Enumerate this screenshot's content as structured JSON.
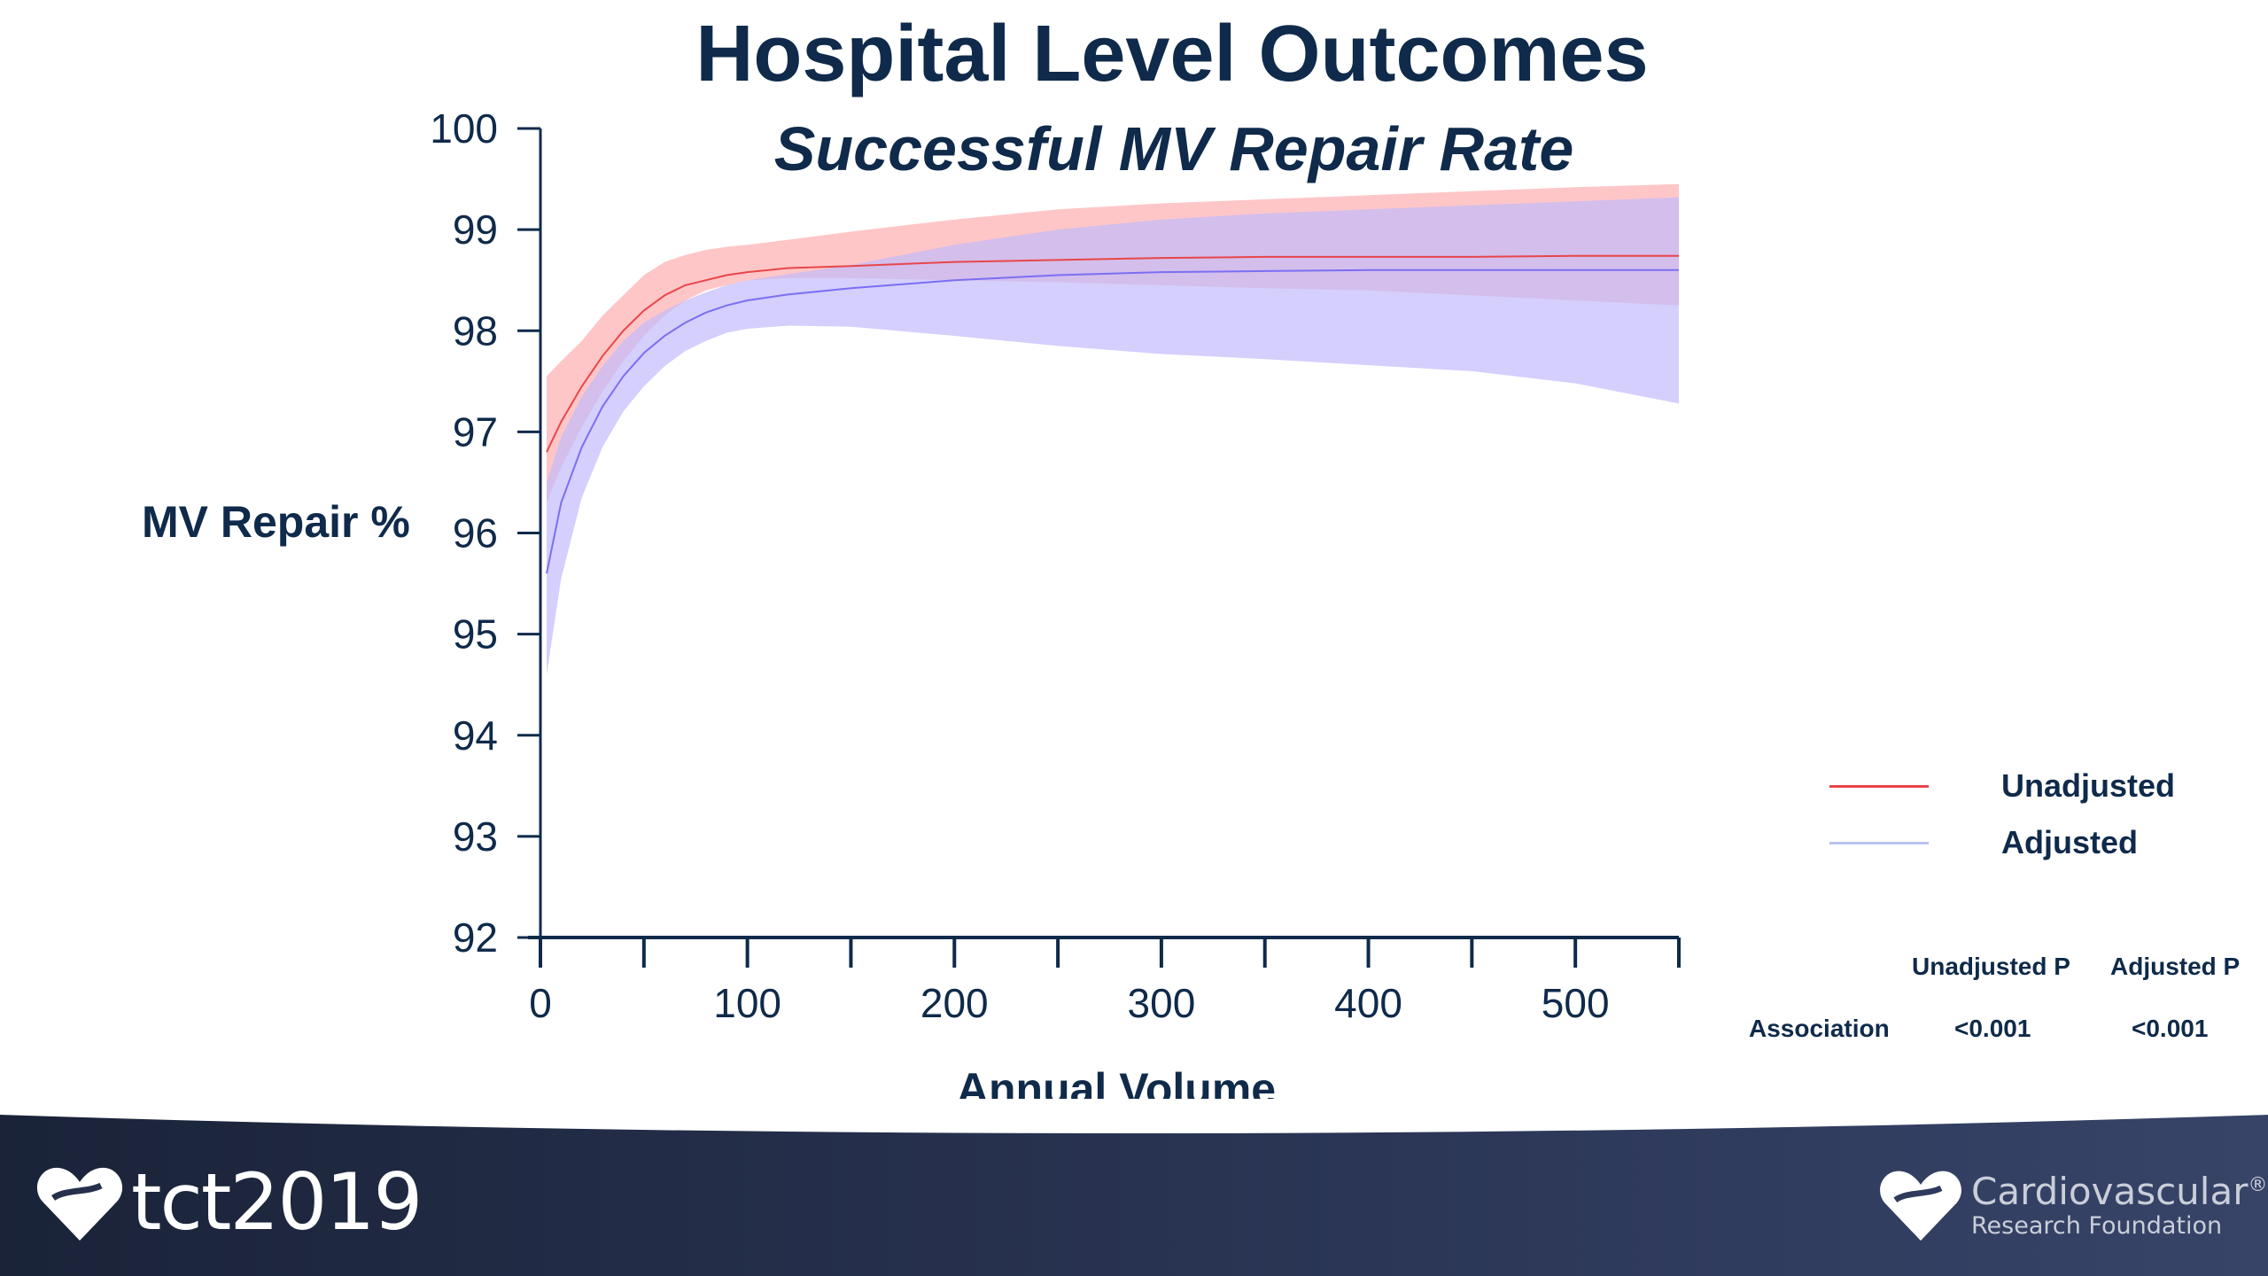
{
  "slide": {
    "title": "Hospital Level Outcomes",
    "subtitle": "Successful MV Repair Rate"
  },
  "chart_data": {
    "type": "line",
    "ylabel": "MV Repair %",
    "xlabel": "Annual Volume",
    "xlim": [
      0,
      550
    ],
    "ylim": [
      92,
      100
    ],
    "x_ticks": [
      0,
      100,
      200,
      300,
      400,
      500
    ],
    "y_ticks": [
      92,
      93,
      94,
      95,
      96,
      97,
      98,
      99,
      100
    ],
    "legend_position": "right",
    "grid": false,
    "series": [
      {
        "name": "Unadjusted",
        "color": "#e8464a",
        "band_color": "#ffb3b6",
        "x": [
          3,
          10,
          20,
          30,
          40,
          50,
          60,
          70,
          80,
          90,
          100,
          120,
          150,
          200,
          250,
          300,
          350,
          400,
          450,
          500,
          550
        ],
        "y": [
          96.8,
          97.1,
          97.45,
          97.75,
          98.0,
          98.2,
          98.35,
          98.45,
          98.5,
          98.55,
          98.58,
          98.62,
          98.64,
          98.68,
          98.7,
          98.72,
          98.73,
          98.73,
          98.73,
          98.74,
          98.74
        ],
        "lower": [
          96.3,
          96.65,
          97.05,
          97.4,
          97.7,
          97.95,
          98.15,
          98.3,
          98.4,
          98.45,
          98.5,
          98.52,
          98.52,
          98.5,
          98.48,
          98.45,
          98.42,
          98.4,
          98.35,
          98.3,
          98.25
        ],
        "upper": [
          97.55,
          97.7,
          97.9,
          98.15,
          98.35,
          98.55,
          98.68,
          98.75,
          98.8,
          98.83,
          98.85,
          98.9,
          98.98,
          99.1,
          99.2,
          99.26,
          99.3,
          99.34,
          99.38,
          99.42,
          99.45
        ]
      },
      {
        "name": "Adjusted",
        "color": "#7b6ff2",
        "band_color": "#c2bbfb",
        "x": [
          3,
          10,
          20,
          30,
          40,
          50,
          60,
          70,
          80,
          90,
          100,
          120,
          150,
          200,
          250,
          300,
          350,
          400,
          450,
          500,
          550
        ],
        "y": [
          95.6,
          96.3,
          96.85,
          97.25,
          97.55,
          97.78,
          97.95,
          98.08,
          98.18,
          98.25,
          98.3,
          98.36,
          98.42,
          98.5,
          98.55,
          98.58,
          98.59,
          98.6,
          98.6,
          98.6,
          98.6
        ],
        "lower": [
          94.6,
          95.55,
          96.35,
          96.85,
          97.2,
          97.45,
          97.65,
          97.8,
          97.9,
          97.98,
          98.02,
          98.05,
          98.04,
          97.95,
          97.85,
          97.77,
          97.72,
          97.66,
          97.6,
          97.48,
          97.28
        ],
        "upper": [
          96.5,
          96.95,
          97.35,
          97.65,
          97.9,
          98.08,
          98.2,
          98.3,
          98.38,
          98.45,
          98.5,
          98.56,
          98.65,
          98.85,
          99.0,
          99.1,
          99.16,
          99.2,
          99.24,
          99.28,
          99.32
        ]
      }
    ],
    "p_table": {
      "headers": [
        "",
        "Unadjusted P",
        "Adjusted P"
      ],
      "rows": [
        [
          "Association",
          "<0.001",
          "<0.001"
        ]
      ]
    }
  },
  "branding": {
    "left_logo_text": "tct2019",
    "right_logo_title": "Cardiovascular",
    "right_logo_registered": "®",
    "right_logo_subtitle": "Research Foundation"
  }
}
